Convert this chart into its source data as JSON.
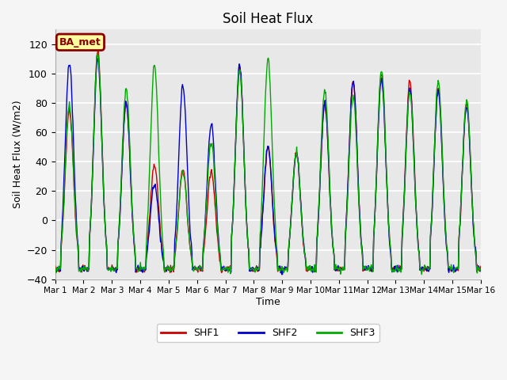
{
  "title": "Soil Heat Flux",
  "ylabel": "Soil Heat Flux (W/m2)",
  "xlabel": "Time",
  "ylim": [
    -40,
    130
  ],
  "yticks": [
    -40,
    -20,
    0,
    20,
    40,
    60,
    80,
    100,
    120
  ],
  "colors": {
    "SHF1": "#cc0000",
    "SHF2": "#0000cc",
    "SHF3": "#00aa00"
  },
  "legend_label": "BA_met",
  "bg_color": "#e8e8e8",
  "line_width": 1.0,
  "xtick_labels": [
    "Mar 1",
    "Mar 2",
    "Mar 3",
    "Mar 4",
    "Mar 5",
    "Mar 6",
    "Mar 7",
    "Mar 8",
    "Mar 9",
    "Mar 10",
    "Mar 11",
    "Mar 12",
    "Mar 13",
    "Mar 14",
    "Mar 15",
    "Mar 16"
  ],
  "peaks_shf1": [
    75,
    115,
    80,
    38,
    35,
    33,
    103,
    50,
    46,
    80,
    95,
    100,
    95,
    90,
    80
  ],
  "peaks_shf2": [
    108,
    110,
    80,
    25,
    92,
    65,
    105,
    52,
    46,
    80,
    95,
    97,
    90,
    88,
    78
  ],
  "peaks_shf3": [
    78,
    114,
    90,
    105,
    34,
    54,
    103,
    110,
    46,
    89,
    85,
    103,
    88,
    95,
    82
  ],
  "night_min": -33,
  "n_days": 15
}
